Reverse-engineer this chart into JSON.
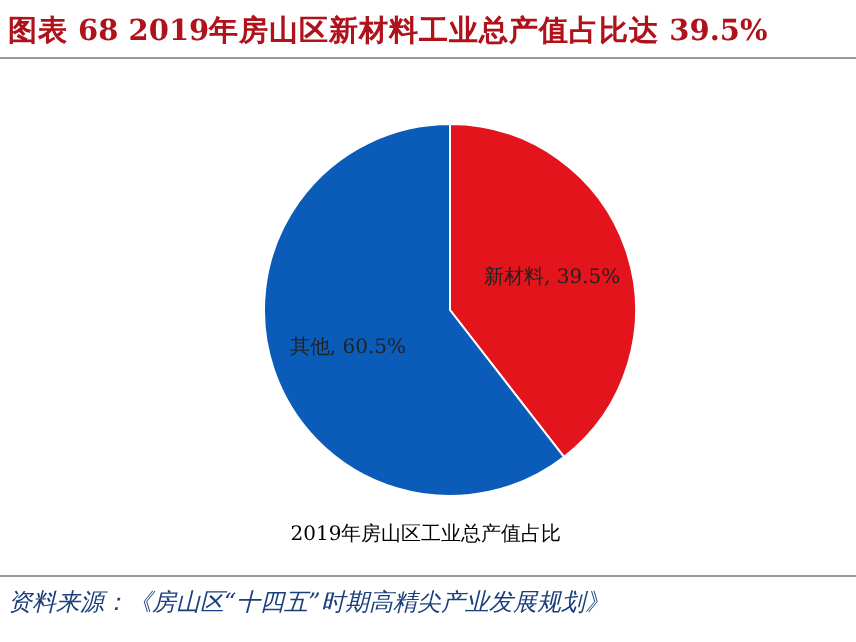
{
  "chart_data": {
    "type": "pie",
    "title": "图表 68  2019年房山区新材料工业总产值占比达 39.5%",
    "subtitle": "2019年房山区工业总产值占比",
    "categories": [
      "新材料",
      "其他"
    ],
    "values": [
      39.5,
      60.5
    ],
    "colors": [
      "#e3141c",
      "#0a5cb8"
    ],
    "value_labels": [
      ", 39.5%",
      ", 60.5%"
    ],
    "annotations": [
      "资料来源：《房山区“十四五”时期高精尖产业发展规划》"
    ]
  }
}
